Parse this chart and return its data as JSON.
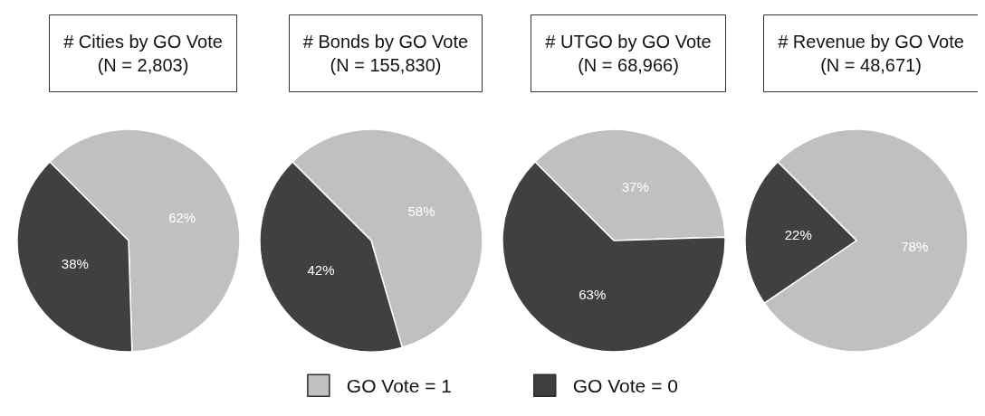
{
  "chart_data": [
    {
      "type": "pie",
      "title": "# Cities by GO Vote",
      "subtitle": "(N = 2,803)",
      "categories": [
        "GO Vote = 1",
        "GO Vote = 0"
      ],
      "values": [
        62,
        38
      ],
      "colors": [
        "#c0c0c0",
        "#404040"
      ],
      "value_labels": [
        "62%",
        "38%"
      ],
      "legend": "bottom"
    },
    {
      "type": "pie",
      "title": "# Bonds by GO Vote",
      "subtitle": "(N = 155,830)",
      "categories": [
        null,
        null
      ],
      "values": [
        58,
        42
      ],
      "colors": [
        "#c0c0c0",
        "#404040"
      ],
      "value_labels": [
        "58%",
        "42%"
      ]
    },
    {
      "type": "pie",
      "title": "# UTGO by GO Vote",
      "subtitle": "(N = 68,966)",
      "categories": [
        null,
        null
      ],
      "values": [
        37,
        63
      ],
      "colors": [
        "#c0c0c0",
        "#404040"
      ],
      "value_labels": [
        "37%",
        "63%"
      ]
    },
    {
      "type": "pie",
      "title": "# Revenue by GO Vote",
      "subtitle": "(N = 48,671)",
      "categories": [
        null,
        null
      ],
      "values": [
        78,
        22
      ],
      "colors": [
        "#c0c0c0",
        "#404040"
      ],
      "value_labels": [
        "78%",
        "22%"
      ]
    }
  ]
}
